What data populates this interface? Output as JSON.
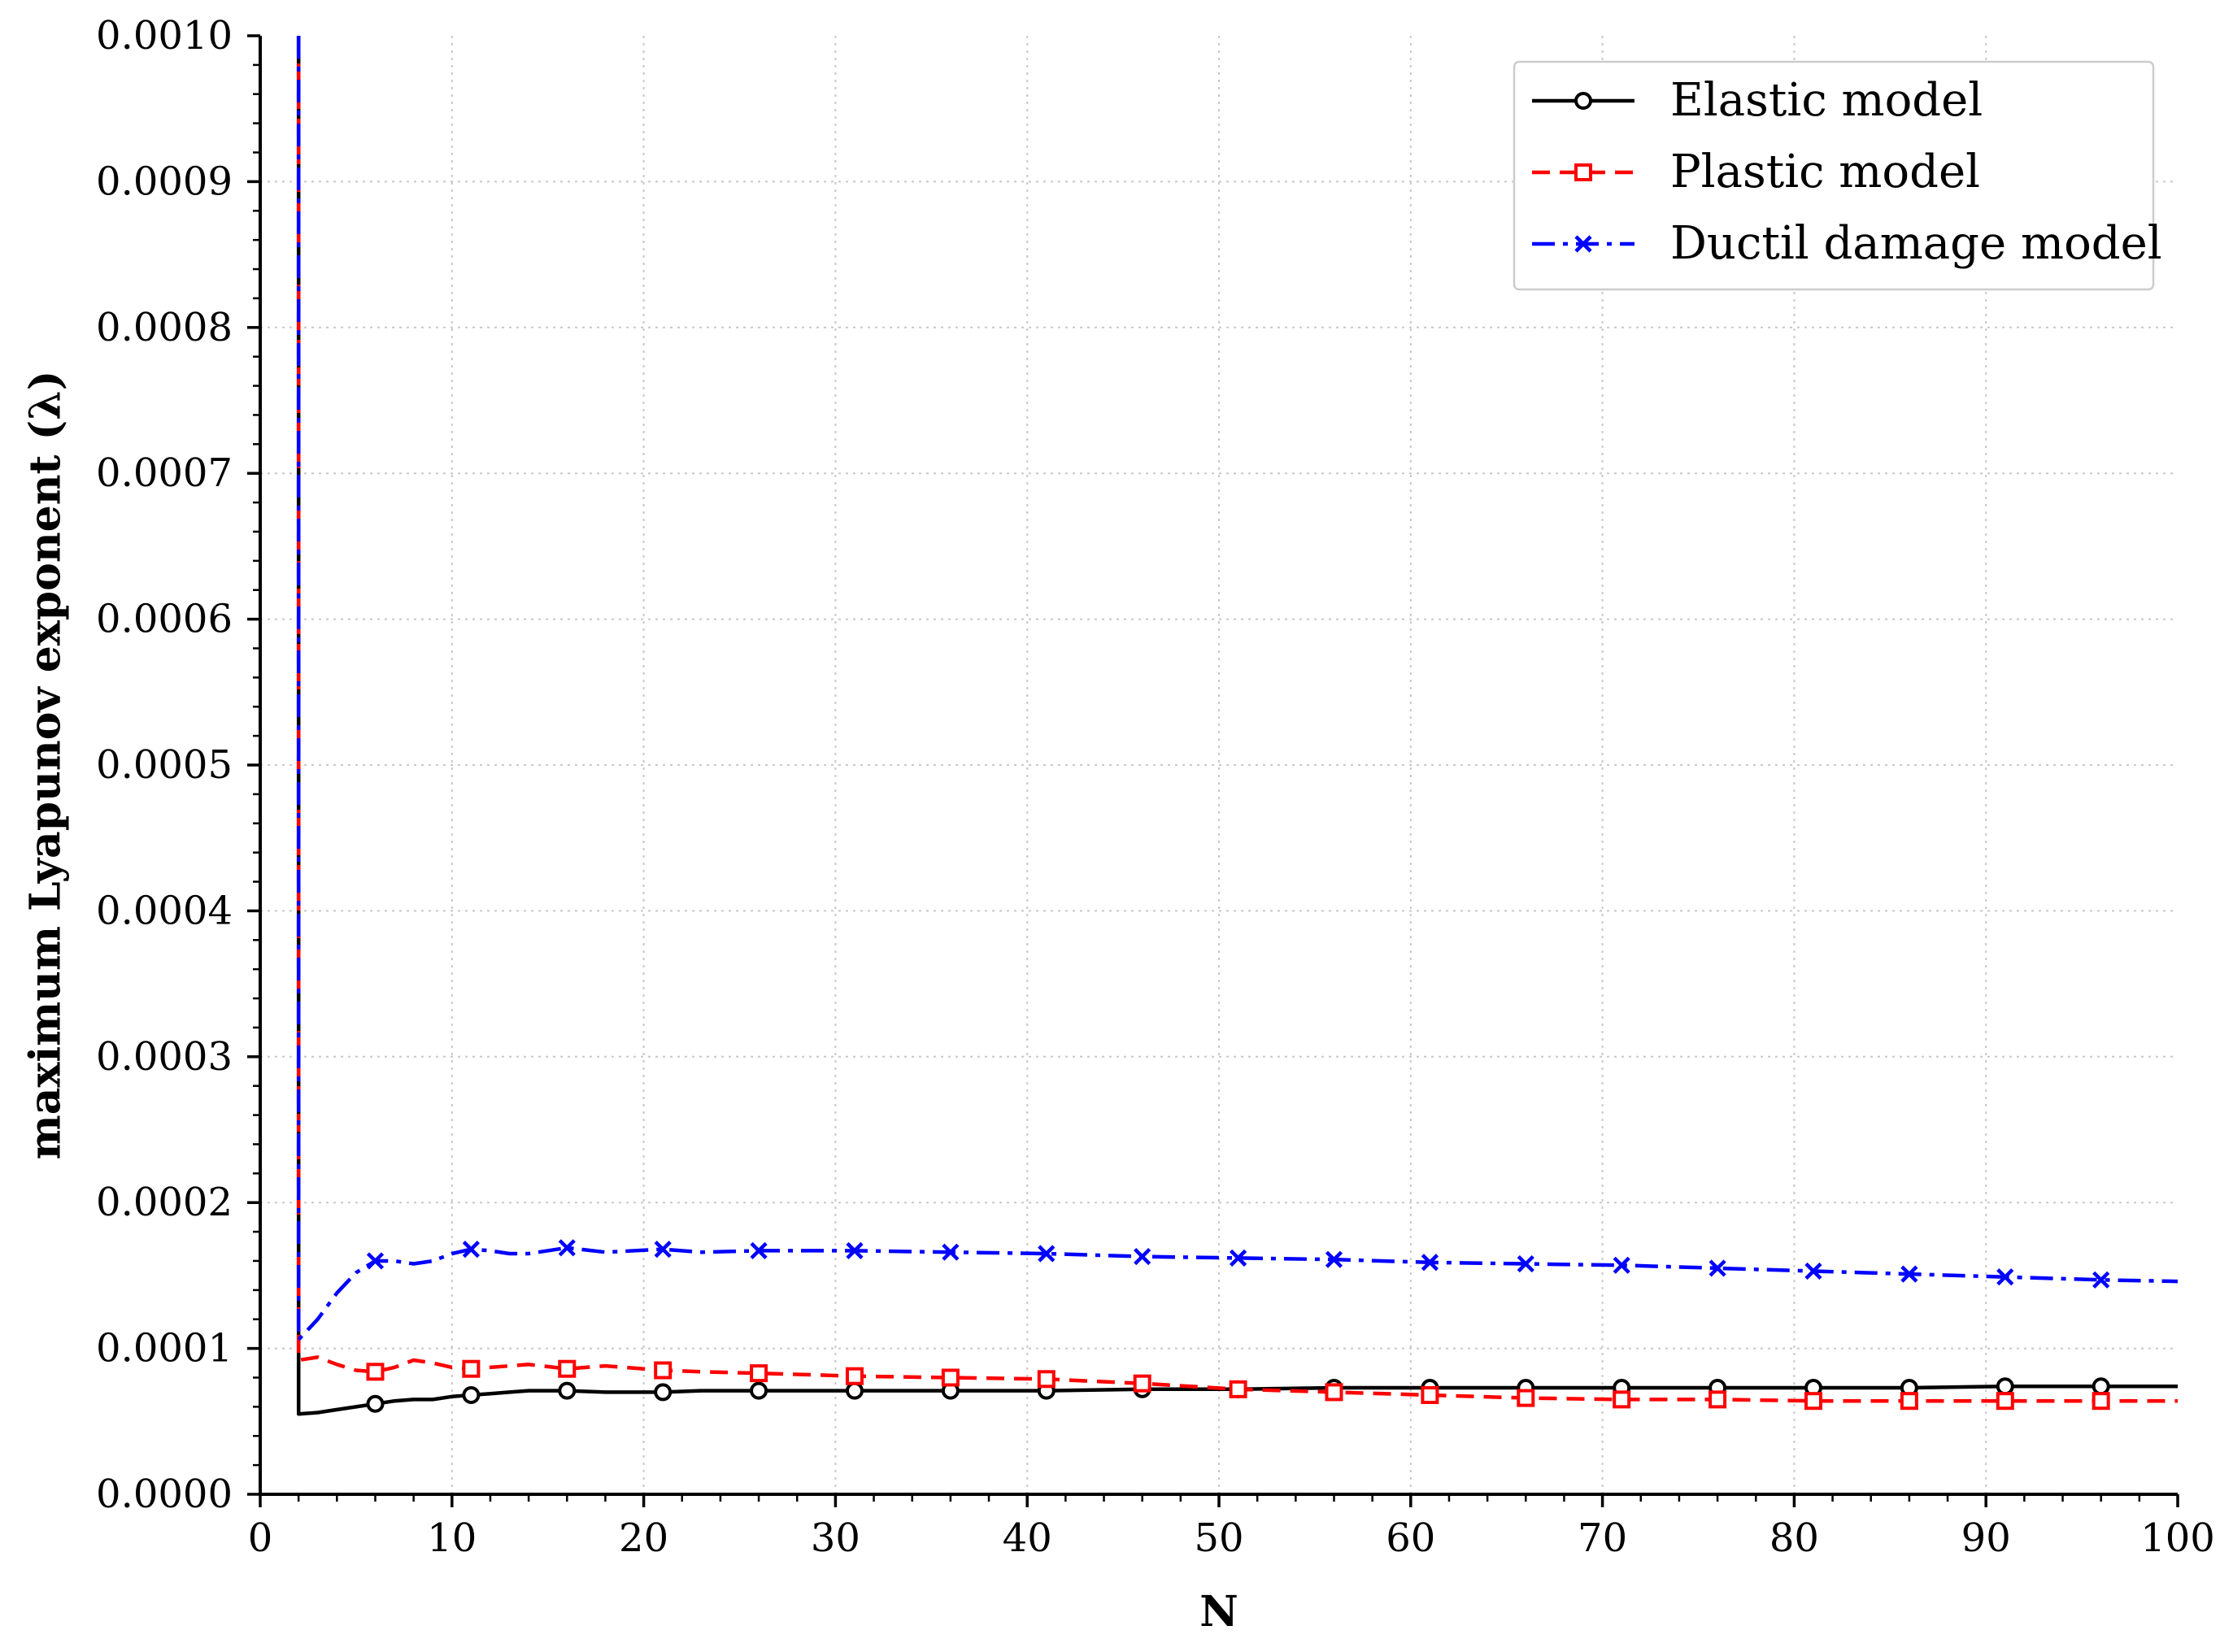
{
  "chart_data": {
    "type": "line",
    "xlabel": "N",
    "ylabel": "maximum Lyapunov exponent (λ)",
    "xlim": [
      0,
      100
    ],
    "ylim": [
      0.0,
      0.001
    ],
    "xticks": [
      "0",
      "10",
      "20",
      "30",
      "40",
      "50",
      "60",
      "70",
      "80",
      "90",
      "100"
    ],
    "yticks": [
      "0.0000",
      "0.0001",
      "0.0002",
      "0.0003",
      "0.0004",
      "0.0005",
      "0.0006",
      "0.0007",
      "0.0008",
      "0.0009",
      "0.0010"
    ],
    "grid": true,
    "legend_position": "top-right",
    "series": [
      {
        "name": "Elastic model",
        "color": "#000000",
        "line_style": "solid",
        "marker": "circle",
        "x": [
          2,
          2,
          3,
          4,
          5,
          6,
          7,
          8,
          9,
          10,
          11,
          12,
          13,
          14,
          15,
          16,
          18,
          20,
          21,
          23,
          26,
          31,
          36,
          41,
          46,
          51,
          56,
          61,
          66,
          71,
          76,
          81,
          86,
          91,
          96,
          100
        ],
        "y": [
          0.001,
          5.5e-05,
          5.6e-05,
          5.8e-05,
          6e-05,
          6.2e-05,
          6.4e-05,
          6.5e-05,
          6.5e-05,
          6.7e-05,
          6.8e-05,
          6.9e-05,
          7e-05,
          7.1e-05,
          7.1e-05,
          7.1e-05,
          7e-05,
          7e-05,
          7e-05,
          7.1e-05,
          7.1e-05,
          7.1e-05,
          7.1e-05,
          7.1e-05,
          7.2e-05,
          7.2e-05,
          7.3e-05,
          7.3e-05,
          7.3e-05,
          7.3e-05,
          7.3e-05,
          7.3e-05,
          7.3e-05,
          7.4e-05,
          7.4e-05,
          7.4e-05
        ],
        "marker_x": [
          6,
          11,
          16,
          21,
          26,
          31,
          36,
          41,
          46,
          51,
          56,
          61,
          66,
          71,
          76,
          81,
          86,
          91,
          96
        ],
        "marker_y": [
          6.2e-05,
          6.8e-05,
          7.1e-05,
          7e-05,
          7.1e-05,
          7.1e-05,
          7.1e-05,
          7.1e-05,
          7.2e-05,
          7.2e-05,
          7.3e-05,
          7.3e-05,
          7.3e-05,
          7.3e-05,
          7.3e-05,
          7.3e-05,
          7.3e-05,
          7.4e-05,
          7.4e-05
        ]
      },
      {
        "name": "Plastic model",
        "color": "#ff0000",
        "line_style": "dashed",
        "marker": "square",
        "x": [
          2,
          2,
          3,
          4,
          5,
          6,
          7,
          8,
          9,
          10,
          11,
          12,
          14,
          16,
          18,
          21,
          23,
          26,
          31,
          36,
          41,
          46,
          51,
          56,
          61,
          66,
          71,
          76,
          81,
          86,
          91,
          96,
          100
        ],
        "y": [
          0.001,
          9.2e-05,
          9.4e-05,
          8.9e-05,
          8.5e-05,
          8.4e-05,
          8.7e-05,
          9.2e-05,
          9e-05,
          8.7e-05,
          8.6e-05,
          8.7e-05,
          8.9e-05,
          8.6e-05,
          8.8e-05,
          8.5e-05,
          8.4e-05,
          8.3e-05,
          8.1e-05,
          8e-05,
          7.9e-05,
          7.6e-05,
          7.2e-05,
          7e-05,
          6.8e-05,
          6.6e-05,
          6.5e-05,
          6.5e-05,
          6.4e-05,
          6.4e-05,
          6.4e-05,
          6.4e-05,
          6.4e-05
        ],
        "marker_x": [
          6,
          11,
          16,
          21,
          26,
          31,
          36,
          41,
          46,
          51,
          56,
          61,
          66,
          71,
          76,
          81,
          86,
          91,
          96
        ],
        "marker_y": [
          8.4e-05,
          8.6e-05,
          8.6e-05,
          8.5e-05,
          8.3e-05,
          8.1e-05,
          8e-05,
          7.9e-05,
          7.6e-05,
          7.2e-05,
          7e-05,
          6.8e-05,
          6.6e-05,
          6.5e-05,
          6.5e-05,
          6.4e-05,
          6.4e-05,
          6.4e-05,
          6.4e-05
        ]
      },
      {
        "name": "Ductil damage model",
        "color": "#0000ff",
        "line_style": "dashdot",
        "marker": "x",
        "x": [
          2,
          2,
          3,
          4,
          5,
          6,
          7,
          8,
          9,
          10,
          11,
          12,
          13,
          14,
          16,
          18,
          21,
          23,
          26,
          31,
          36,
          41,
          46,
          51,
          56,
          61,
          66,
          71,
          76,
          81,
          86,
          91,
          96,
          100
        ],
        "y": [
          0.001,
          0.000106,
          0.00012,
          0.000138,
          0.000152,
          0.00016,
          0.00016,
          0.000158,
          0.00016,
          0.000165,
          0.000168,
          0.000167,
          0.000165,
          0.000165,
          0.000169,
          0.000166,
          0.000168,
          0.000166,
          0.000167,
          0.000167,
          0.000166,
          0.000165,
          0.000163,
          0.000162,
          0.000161,
          0.000159,
          0.000158,
          0.000157,
          0.000155,
          0.000153,
          0.000151,
          0.000149,
          0.000147,
          0.000146
        ],
        "marker_x": [
          6,
          11,
          16,
          21,
          26,
          31,
          36,
          41,
          46,
          51,
          56,
          61,
          66,
          71,
          76,
          81,
          86,
          91,
          96
        ],
        "marker_y": [
          0.00016,
          0.000168,
          0.000169,
          0.000168,
          0.000167,
          0.000167,
          0.000166,
          0.000165,
          0.000163,
          0.000162,
          0.000161,
          0.000159,
          0.000158,
          0.000157,
          0.000155,
          0.000153,
          0.000151,
          0.000149,
          0.000147
        ]
      }
    ]
  }
}
